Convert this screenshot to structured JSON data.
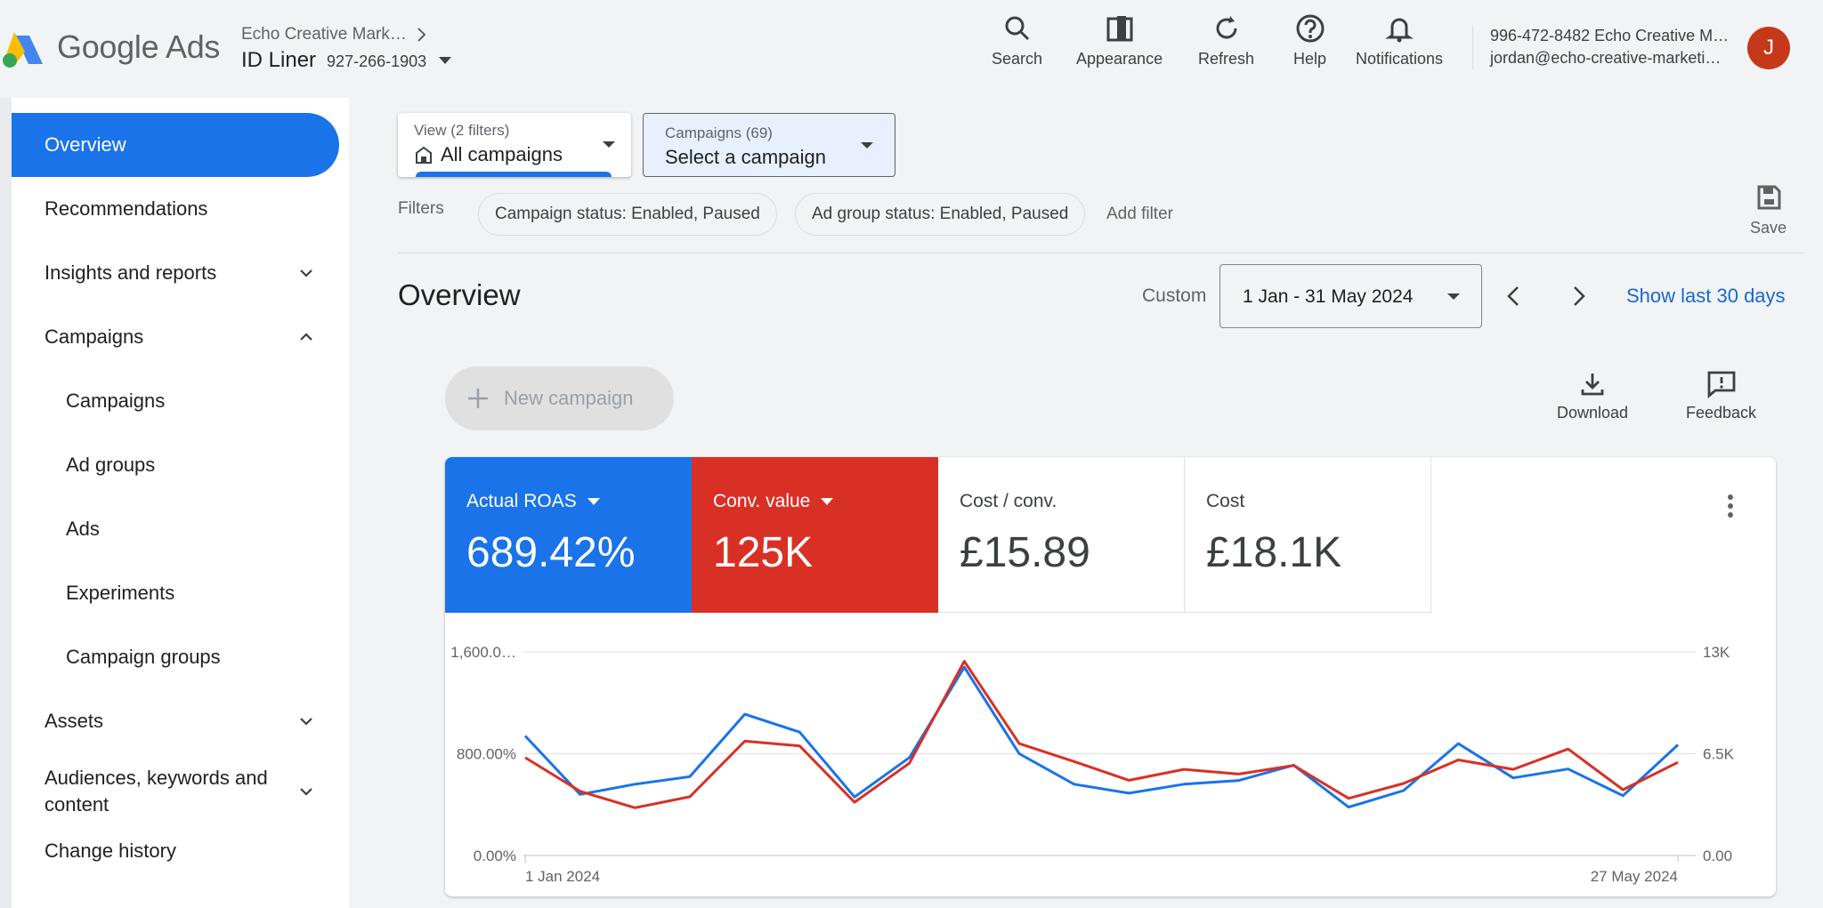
{
  "header": {
    "brand": "Google Ads",
    "account_parent": "Echo Creative Mark…",
    "account_name": "ID Liner",
    "account_id": "927-266-1903",
    "tools": [
      {
        "label": "Search",
        "icon": "search-icon"
      },
      {
        "label": "Appearance",
        "icon": "appearance-icon"
      },
      {
        "label": "Refresh",
        "icon": "refresh-icon"
      },
      {
        "label": "Help",
        "icon": "help-icon"
      },
      {
        "label": "Notifications",
        "icon": "bell-icon"
      }
    ],
    "user_phone": "996-472-8482 Echo Creative M…",
    "user_email": "jordan@echo-creative-marketi…",
    "avatar_letter": "J",
    "avatar_color": "#c5381a"
  },
  "sidebar": {
    "items": [
      {
        "label": "Overview",
        "active": true
      },
      {
        "label": "Recommendations"
      },
      {
        "label": "Insights and reports",
        "chevron": "down"
      },
      {
        "label": "Campaigns",
        "chevron": "up"
      },
      {
        "label": "Campaigns",
        "sub": true
      },
      {
        "label": "Ad groups",
        "sub": true
      },
      {
        "label": "Ads",
        "sub": true
      },
      {
        "label": "Experiments",
        "sub": true
      },
      {
        "label": "Campaign groups",
        "sub": true
      },
      {
        "label": "Assets",
        "chevron": "down"
      },
      {
        "label": "Audiences, keywords and content",
        "chevron": "down"
      },
      {
        "label": "Change history"
      }
    ]
  },
  "filters": {
    "view_label": "View (2 filters)",
    "view_value": "All campaigns",
    "campaigns_label": "Campaigns (69)",
    "campaigns_value": "Select a campaign",
    "filters_label": "Filters",
    "chips": [
      "Campaign status: Enabled, Paused",
      "Ad group status: Enabled, Paused"
    ],
    "add_filter": "Add filter",
    "save_label": "Save"
  },
  "overview": {
    "title": "Overview",
    "custom_label": "Custom",
    "date_range": "1 Jan - 31 May 2024",
    "show_last": "Show last 30 days",
    "new_campaign": "New campaign",
    "download": "Download",
    "feedback": "Feedback"
  },
  "metrics": [
    {
      "name": "Actual ROAS",
      "value": "689.42%",
      "color": "#1a73e8",
      "dropdown": true
    },
    {
      "name": "Conv. value",
      "value": "125K",
      "color": "#d93025",
      "dropdown": true
    },
    {
      "name": "Cost / conv.",
      "value": "£15.89"
    },
    {
      "name": "Cost",
      "value": "£18.1K"
    }
  ],
  "chart_data": {
    "type": "line",
    "x_labels": [
      "1 Jan 2024",
      "27 May 2024"
    ],
    "y_left_ticks": [
      "0.00%",
      "800.00%",
      "1,600.0…"
    ],
    "y_left_range": [
      0,
      1600
    ],
    "y_right_ticks": [
      "0.00",
      "6.5K",
      "13K"
    ],
    "y_right_range": [
      0,
      13000
    ],
    "grid": true,
    "series": [
      {
        "name": "Actual ROAS",
        "color": "#1a73e8",
        "axis": "left",
        "values": [
          940,
          480,
          560,
          620,
          1110,
          970,
          460,
          770,
          1480,
          800,
          560,
          490,
          560,
          590,
          710,
          380,
          510,
          880,
          610,
          680,
          470,
          870
        ]
      },
      {
        "name": "Conv. value",
        "color": "#d93025",
        "axis": "right",
        "values": [
          6250,
          4100,
          3050,
          3750,
          7300,
          7000,
          3400,
          5900,
          12400,
          7150,
          6000,
          4800,
          5500,
          5200,
          5750,
          3650,
          4600,
          6100,
          5500,
          6800,
          4200,
          5950
        ]
      }
    ]
  }
}
